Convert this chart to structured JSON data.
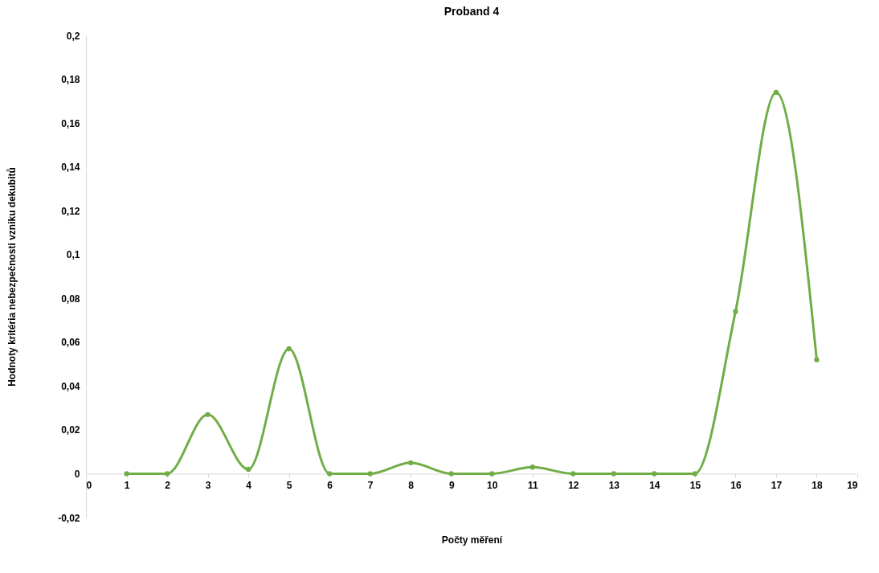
{
  "chart_data": {
    "type": "line",
    "title": "Proband 4",
    "xlabel": "Počty měření",
    "ylabel": "Hodnoty kritéria nebezpečnosti vzniku dekubitů",
    "x": [
      1,
      2,
      3,
      4,
      5,
      6,
      7,
      8,
      9,
      10,
      11,
      12,
      13,
      14,
      15,
      16,
      17,
      18
    ],
    "series": [
      {
        "color": "#70ad47",
        "values": [
          0,
          0,
          0.027,
          0.002,
          0.057,
          0,
          0,
          0.005,
          0,
          0,
          0.003,
          0,
          0,
          0,
          0,
          0.074,
          0.174,
          0.052
        ]
      }
    ],
    "xlim": [
      0,
      19
    ],
    "xticks": [
      0,
      1,
      2,
      3,
      4,
      5,
      6,
      7,
      8,
      9,
      10,
      11,
      12,
      13,
      14,
      15,
      16,
      17,
      18,
      19
    ],
    "ylim": [
      -0.02,
      0.2
    ],
    "yticks": [
      {
        "value": -0.02,
        "label": "-0,02"
      },
      0,
      {
        "value": 0.02,
        "label": "0,02"
      },
      {
        "value": 0.04,
        "label": "0,04"
      },
      {
        "value": 0.06,
        "label": "0,06"
      },
      {
        "value": 0.08,
        "label": "0,08"
      },
      {
        "value": 0.1,
        "label": "0,1"
      },
      {
        "value": 0.12,
        "label": "0,12"
      },
      {
        "value": 0.14,
        "label": "0,14"
      },
      {
        "value": 0.16,
        "label": "0,16"
      },
      {
        "value": 0.18,
        "label": "0,18"
      },
      {
        "value": 0.2,
        "label": "0,2"
      }
    ],
    "grid": false,
    "legend": false,
    "marker": "circle",
    "line_style": "solid"
  }
}
